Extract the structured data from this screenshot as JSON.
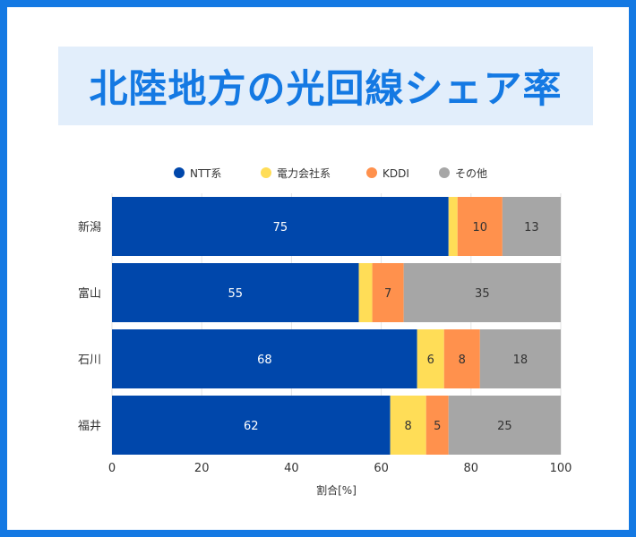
{
  "title": "北陸地方の光回線シェア率",
  "chart_data": {
    "type": "bar",
    "orientation": "horizontal",
    "stacked": true,
    "categories": [
      "新潟",
      "富山",
      "石川",
      "福井"
    ],
    "series": [
      {
        "name": "NTT系",
        "color": "#0047ab",
        "label_color": "#ffffff",
        "values": [
          75,
          55,
          68,
          62
        ],
        "labels": [
          "75",
          "55",
          "68",
          "62"
        ]
      },
      {
        "name": "電力会社系",
        "color": "#ffdd57",
        "label_color": "#333333",
        "values": [
          2,
          3,
          6,
          8
        ],
        "labels": [
          "",
          "",
          "6",
          "8"
        ]
      },
      {
        "name": "KDDI",
        "color": "#ff914d",
        "label_color": "#333333",
        "values": [
          10,
          7,
          8,
          5
        ],
        "labels": [
          "10",
          "7",
          "8",
          "5"
        ]
      },
      {
        "name": "その他",
        "color": "#a6a6a6",
        "label_color": "#333333",
        "values": [
          13,
          35,
          18,
          25
        ],
        "labels": [
          "13",
          "35",
          "18",
          "25"
        ]
      }
    ],
    "xlabel": "割合[%]",
    "xlim": [
      0,
      100
    ],
    "xticks": [
      "0",
      "20",
      "40",
      "60",
      "80",
      "100"
    ],
    "grid": true,
    "legend_position": "top-center"
  }
}
